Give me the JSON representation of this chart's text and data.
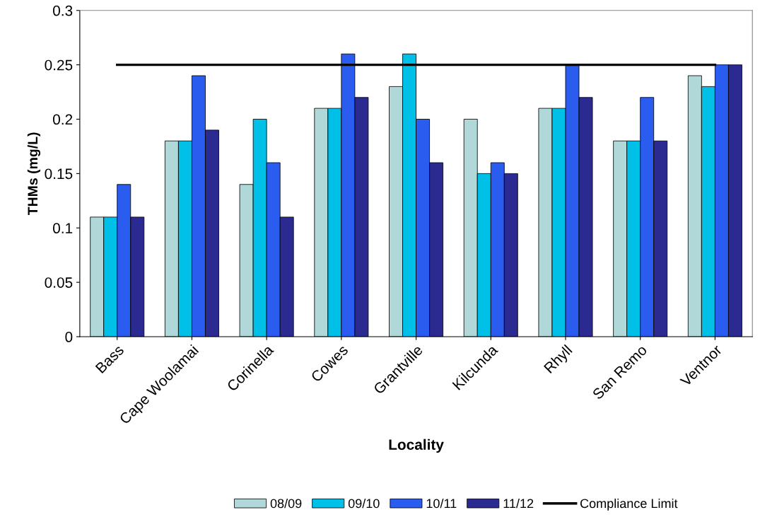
{
  "chart_data": {
    "type": "bar",
    "xlabel": "Locality",
    "ylabel": "THMs (mg/L)",
    "categories": [
      "Bass",
      "Cape Woolamai",
      "Corinella",
      "Cowes",
      "Grantville",
      "Kilcunda",
      "Rhyll",
      "San Remo",
      "Ventnor"
    ],
    "series": [
      {
        "name": "08/09",
        "color": "#b0d8d8",
        "values": [
          0.11,
          0.18,
          0.14,
          0.21,
          0.23,
          0.2,
          0.21,
          0.18,
          0.24
        ]
      },
      {
        "name": "09/10",
        "color": "#00c0e8",
        "values": [
          0.11,
          0.18,
          0.2,
          0.21,
          0.26,
          0.15,
          0.21,
          0.18,
          0.23
        ]
      },
      {
        "name": "10/11",
        "color": "#2a5cf0",
        "values": [
          0.14,
          0.24,
          0.16,
          0.26,
          0.2,
          0.16,
          0.25,
          0.22,
          0.25
        ]
      },
      {
        "name": "11/12",
        "color": "#2a2a90",
        "values": [
          0.11,
          0.19,
          0.11,
          0.22,
          0.16,
          0.15,
          0.22,
          0.18,
          0.25
        ]
      },
      {
        "name": "Compliance Limit",
        "type": "line",
        "color": "#000000",
        "values": [
          0.25,
          0.25,
          0.25,
          0.25,
          0.25,
          0.25,
          0.25,
          0.25,
          0.25
        ]
      }
    ],
    "ylim": [
      0,
      0.3
    ],
    "yticks": [
      0,
      0.05,
      0.1,
      0.15,
      0.2,
      0.25,
      0.3
    ],
    "grid": false,
    "legend": "bottom"
  }
}
